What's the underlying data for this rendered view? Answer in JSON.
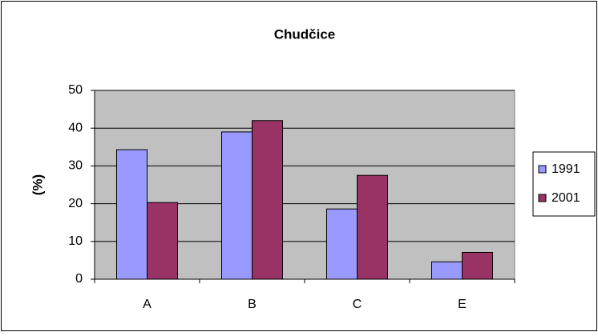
{
  "chart_data": {
    "type": "bar",
    "title": "Chudčice",
    "ylabel": "(%)",
    "categories": [
      "A",
      "B",
      "C",
      "E"
    ],
    "series": [
      {
        "name": "1991",
        "color": "#9999ff",
        "values": [
          34.3,
          39,
          18.6,
          4.6
        ]
      },
      {
        "name": "2001",
        "color": "#993366",
        "values": [
          20.3,
          42,
          27.5,
          7.1
        ]
      }
    ],
    "ylim": [
      0,
      50
    ],
    "yticks": [
      0,
      10,
      20,
      30,
      40,
      50
    ],
    "grid": true,
    "legend": "right"
  }
}
